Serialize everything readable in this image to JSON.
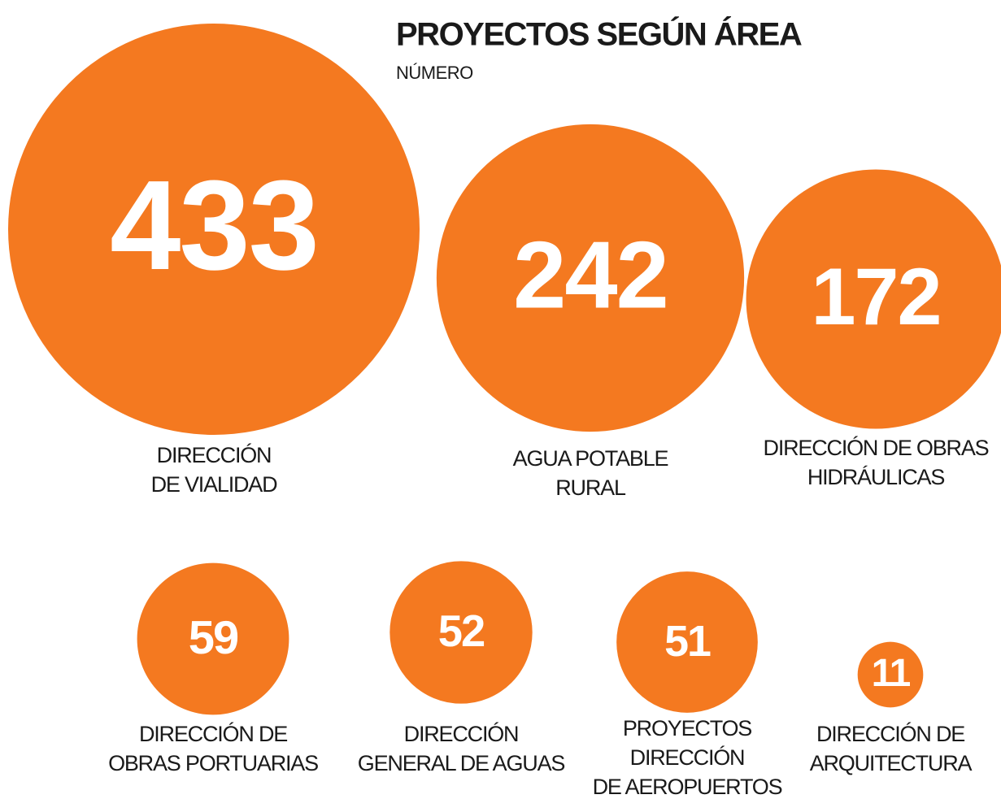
{
  "chart_data": {
    "type": "bubble",
    "title": "PROYECTOS SEGÚN ÁREA",
    "subtitle": "NÚMERO",
    "categories": [
      [
        "DIRECCIÓN",
        "DE VIALIDAD"
      ],
      [
        "AGUA POTABLE",
        "RURAL"
      ],
      [
        "DIRECCIÓN DE OBRAS",
        "HIDRÁULICAS"
      ],
      [
        "DIRECCIÓN DE",
        "OBRAS PORTUARIAS"
      ],
      [
        "DIRECCIÓN",
        "GENERAL DE AGUAS"
      ],
      [
        "PROYECTOS",
        "DIRECCIÓN",
        "DE AEROPUERTOS"
      ],
      [
        "DIRECCIÓN DE",
        "ARQUITECTURA"
      ]
    ],
    "values": [
      433,
      242,
      172,
      59,
      52,
      51,
      11
    ],
    "color": "#f47920"
  }
}
